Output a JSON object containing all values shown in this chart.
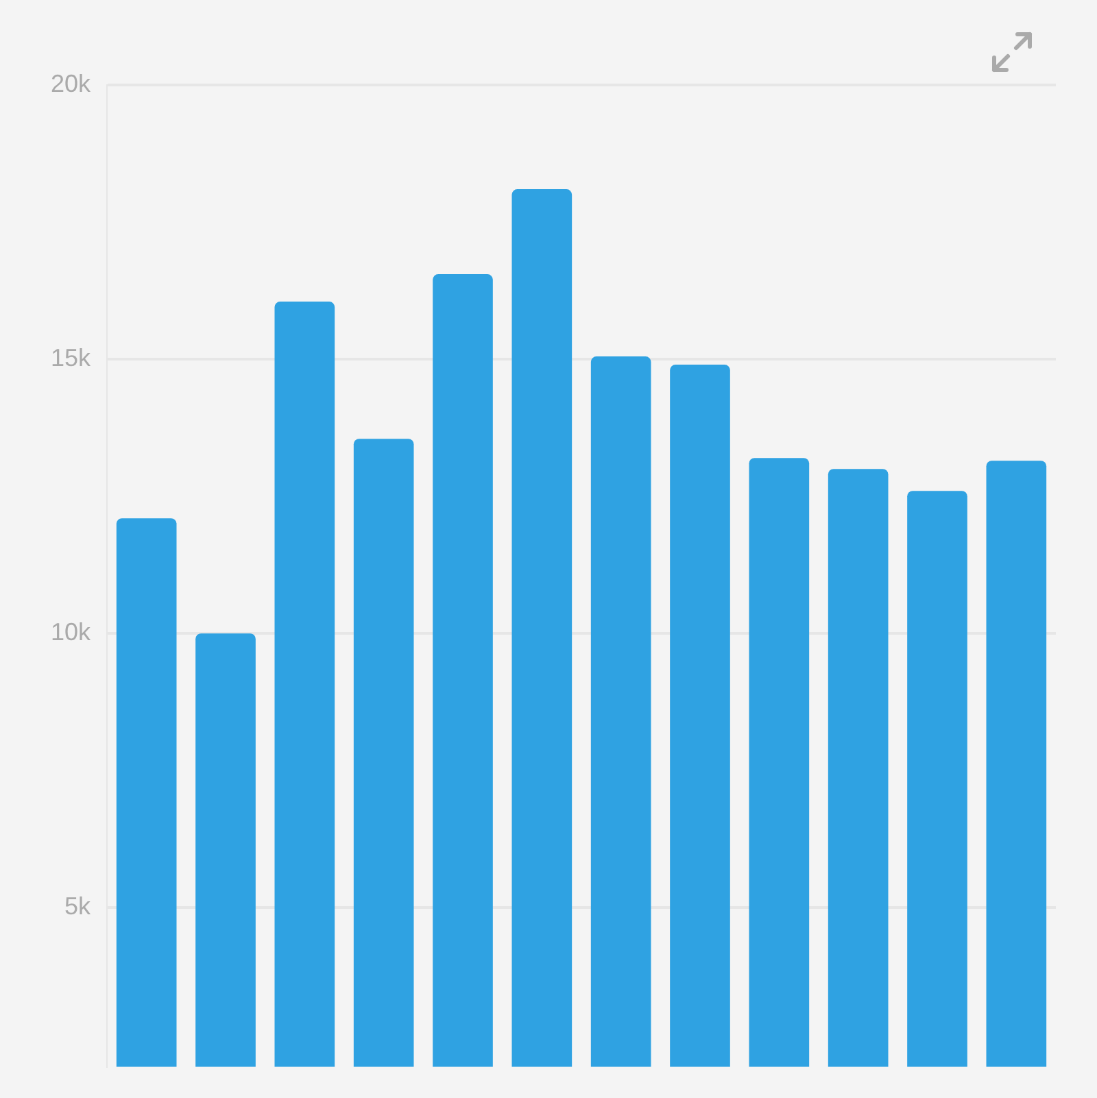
{
  "chart_data": {
    "type": "bar",
    "categories": [
      null,
      null,
      null,
      null,
      null,
      null,
      null,
      null,
      null,
      null,
      null,
      null
    ],
    "values": [
      12100,
      10000,
      16050,
      13550,
      16550,
      18100,
      15050,
      14900,
      13200,
      13000,
      12600,
      13150
    ],
    "color": "#2fa2e2",
    "ylim": [
      2100,
      20000
    ],
    "yticks": [
      {
        "value": 5000,
        "label": "5k"
      },
      {
        "value": 10000,
        "label": "10k"
      },
      {
        "value": 15000,
        "label": "15k"
      },
      {
        "value": 20000,
        "label": "20k"
      }
    ],
    "grid": "y",
    "legend": false
  }
}
